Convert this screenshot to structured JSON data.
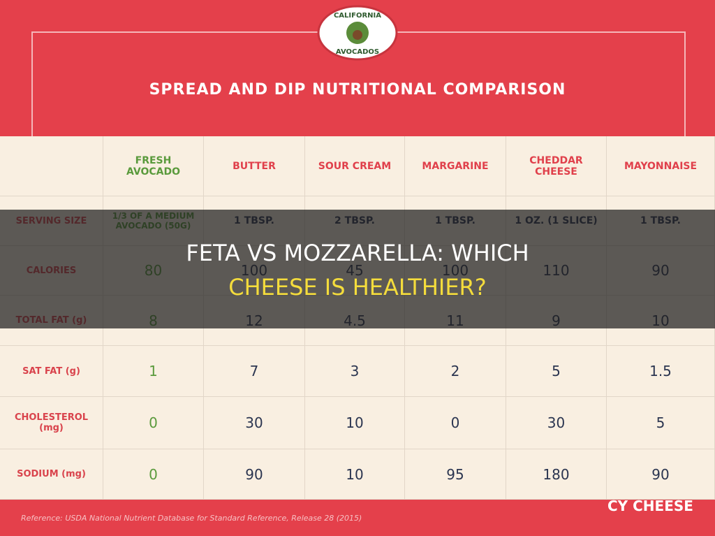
{
  "logo": {
    "top": "CALIFORNIA",
    "bottom": "AVOCADOS"
  },
  "header": {
    "title": "SPREAD AND DIP NUTRITIONAL COMPARISON"
  },
  "table": {
    "columns": [
      "FRESH AVOCADO",
      "BUTTER",
      "SOUR CREAM",
      "MARGARINE",
      "CHEDDAR CHEESE",
      "MAYONNAISE"
    ],
    "rows": [
      [
        "SERVING SIZE",
        "1/3 OF A MEDIUM AVOCADO (50G)",
        "1 TBSP.",
        "2 TBSP.",
        "1 TBSP.",
        "1 OZ. (1 SLICE)",
        "1 TBSP."
      ],
      [
        "CALORIES",
        "80",
        "100",
        "45",
        "100",
        "110",
        "90"
      ],
      [
        "TOTAL FAT (g)",
        "8",
        "12",
        "4.5",
        "11",
        "9",
        "10"
      ],
      [
        "SAT FAT (g)",
        "1",
        "7",
        "3",
        "2",
        "5",
        "1.5"
      ],
      [
        "CHOLESTEROL (mg)",
        "0",
        "30",
        "10",
        "0",
        "30",
        "5"
      ],
      [
        "SODIUM (mg)",
        "0",
        "90",
        "10",
        "95",
        "180",
        "90"
      ]
    ]
  },
  "footer": {
    "reference": "Reference: USDA National Nutrient Database for Standard Reference, Release 28 (2015)",
    "watermark": "CY CHEESE"
  },
  "overlay": {
    "title_lines": [
      "FETA VS MOZZARELLA: WHICH",
      "CHEESE IS HEALTHIER?"
    ]
  }
}
